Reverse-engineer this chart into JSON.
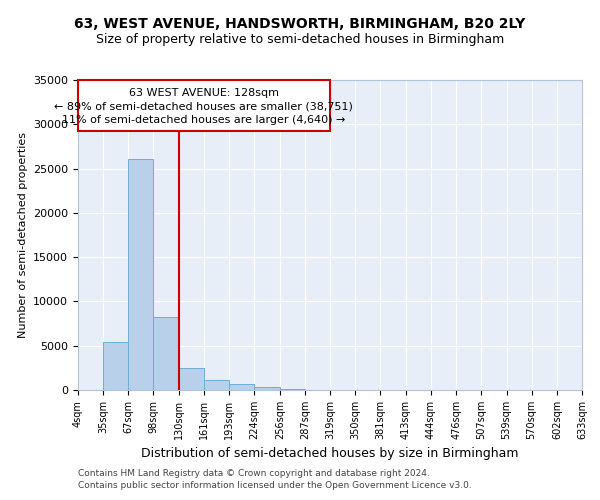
{
  "title": "63, WEST AVENUE, HANDSWORTH, BIRMINGHAM, B20 2LY",
  "subtitle": "Size of property relative to semi-detached houses in Birmingham",
  "xlabel": "Distribution of semi-detached houses by size in Birmingham",
  "ylabel": "Number of semi-detached properties",
  "property_label": "63 WEST AVENUE: 128sqm",
  "annotation_line1": "← 89% of semi-detached houses are smaller (38,751)",
  "annotation_line2": "11% of semi-detached houses are larger (4,640) →",
  "footer1": "Contains HM Land Registry data © Crown copyright and database right 2024.",
  "footer2": "Contains public sector information licensed under the Open Government Licence v3.0.",
  "bar_edges": [
    4,
    35,
    67,
    98,
    130,
    161,
    193,
    224,
    256,
    287,
    319,
    350,
    381,
    413,
    444,
    476,
    507,
    539,
    570,
    602,
    633
  ],
  "bar_heights": [
    0,
    5400,
    26100,
    8200,
    2500,
    1100,
    650,
    300,
    150,
    0,
    0,
    0,
    0,
    0,
    0,
    0,
    0,
    0,
    0,
    0
  ],
  "bar_color": "#b8d0ea",
  "bar_edge_color": "#6aaed6",
  "vline_x": 130,
  "vline_color": "#cc0000",
  "annotation_box_color": "#cc0000",
  "background_color": "#e8eef8",
  "ylim": [
    0,
    35000
  ],
  "yticks": [
    0,
    5000,
    10000,
    15000,
    20000,
    25000,
    30000,
    35000
  ],
  "figsize": [
    6.0,
    5.0
  ],
  "dpi": 100
}
